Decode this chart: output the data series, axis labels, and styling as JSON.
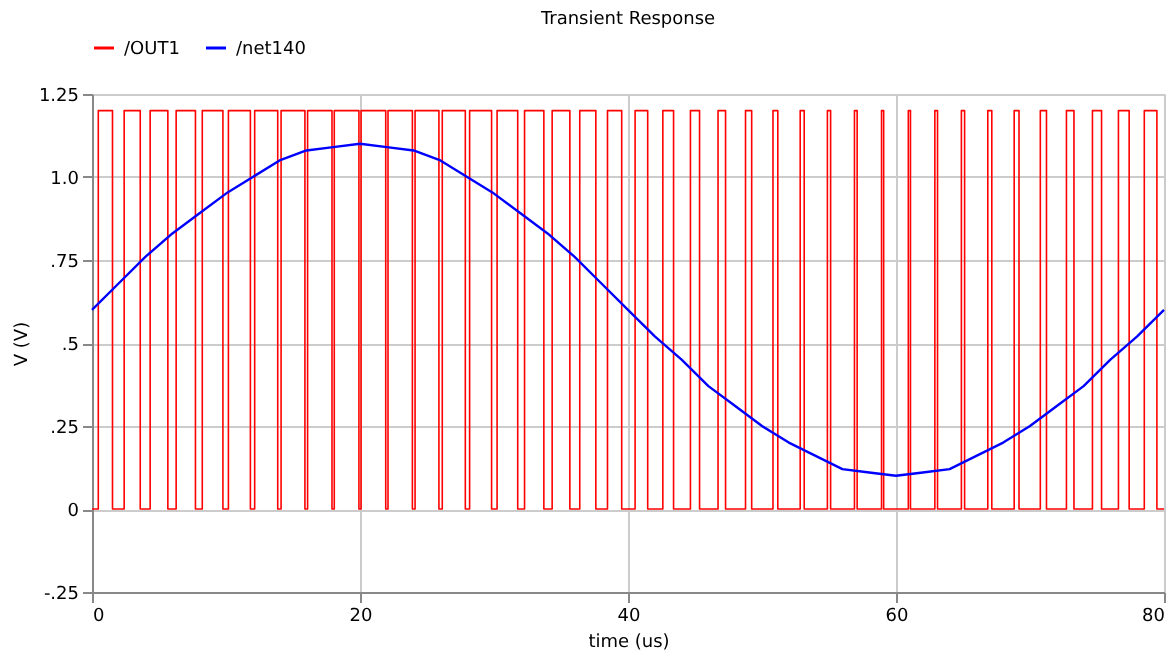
{
  "chart_data": {
    "type": "line",
    "title": "Transient Response",
    "xlabel": "time (us)",
    "ylabel": "V (V)",
    "xlim": [
      0,
      80
    ],
    "xticks": [
      0,
      20,
      40,
      60,
      80
    ],
    "ylim": [
      -0.25,
      1.25
    ],
    "yticks": [
      {
        "value": -0.25,
        "label": "-.25"
      },
      0,
      {
        "value": 0.25,
        "label": ".25"
      },
      {
        "value": 0.5,
        "label": ".5"
      },
      {
        "value": 0.75,
        "label": ".75"
      },
      {
        "value": 1.0,
        "label": "1.0"
      },
      1.25
    ],
    "grid": true,
    "legend": "top left",
    "line_style": "solid",
    "series": [
      {
        "name": "/OUT1",
        "type": "step",
        "color": "#ff0000",
        "x": [
          0,
          0.47,
          1.53,
          2.4,
          3.6,
          4.34,
          5.66,
          6.28,
          7.72,
          8.23,
          9.77,
          10.18,
          11.82,
          12.14,
          13.86,
          14.11,
          15.89,
          16.09,
          17.91,
          18.08,
          19.92,
          20.08,
          21.92,
          22.09,
          23.91,
          24.11,
          25.89,
          26.14,
          27.86,
          28.18,
          29.82,
          30.23,
          31.77,
          32.28,
          33.72,
          34.34,
          35.66,
          36.4,
          37.6,
          38.47,
          39.53,
          40.53,
          41.47,
          42.6,
          43.4,
          44.66,
          45.34,
          46.72,
          47.28,
          48.77,
          49.23,
          50.82,
          51.18,
          52.85,
          53.15,
          54.88,
          55.12,
          56.9,
          57.1,
          58.92,
          59.08,
          60.92,
          61.08,
          62.9,
          63.1,
          64.88,
          65.12,
          66.85,
          67.15,
          68.82,
          69.18,
          70.77,
          71.23,
          72.72,
          73.28,
          74.66,
          75.34,
          76.6,
          77.4,
          78.53,
          79.47,
          80
        ],
        "values": [
          0,
          1.2,
          0,
          1.2,
          0,
          1.2,
          0,
          1.2,
          0,
          1.2,
          0,
          1.2,
          0,
          1.2,
          0,
          1.2,
          0,
          1.2,
          0,
          1.2,
          0,
          1.2,
          0,
          1.2,
          0,
          1.2,
          0,
          1.2,
          0,
          1.2,
          0,
          1.2,
          0,
          1.2,
          0,
          1.2,
          0,
          1.2,
          0,
          1.2,
          0,
          1.2,
          0,
          1.2,
          0,
          1.2,
          0,
          1.2,
          0,
          1.2,
          0,
          1.2,
          0,
          1.2,
          0,
          1.2,
          0,
          1.2,
          0,
          1.2,
          0,
          1.2,
          0,
          1.2,
          0,
          1.2,
          0,
          1.2,
          0,
          1.2,
          0,
          1.2,
          0,
          1.2,
          0,
          1.2,
          0,
          1.2,
          0,
          1.2,
          0,
          0
        ]
      },
      {
        "name": "/net140",
        "type": "line",
        "color": "#0000ff",
        "x": [
          0,
          2,
          4,
          6,
          8,
          10,
          12,
          14,
          16,
          18,
          20,
          22,
          24,
          26,
          28,
          30,
          32,
          34,
          36,
          38,
          40,
          42,
          44,
          46,
          48,
          50,
          52,
          54,
          56,
          58,
          60,
          62,
          64,
          66,
          68,
          70,
          72,
          74,
          76,
          78,
          80
        ],
        "values": [
          0.6,
          0.68,
          0.76,
          0.83,
          0.89,
          0.95,
          1.0,
          1.05,
          1.08,
          1.09,
          1.1,
          1.09,
          1.08,
          1.05,
          1.0,
          0.95,
          0.89,
          0.83,
          0.76,
          0.68,
          0.6,
          0.52,
          0.45,
          0.37,
          0.31,
          0.25,
          0.2,
          0.16,
          0.12,
          0.11,
          0.1,
          0.11,
          0.12,
          0.16,
          0.2,
          0.25,
          0.31,
          0.37,
          0.45,
          0.52,
          0.6
        ]
      }
    ]
  }
}
